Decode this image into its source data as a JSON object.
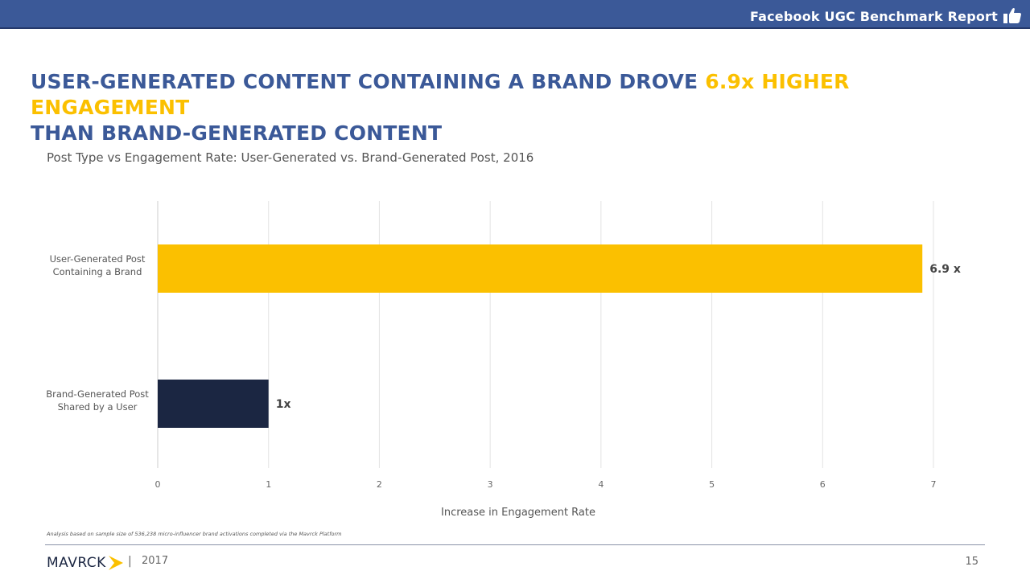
{
  "header": {
    "report_title": "Facebook UGC Benchmark Report",
    "icon": "thumbs-up-icon",
    "bar_color": "#3b5998"
  },
  "headline": {
    "part1": "USER-GENERATED CONTENT CONTAINING A BRAND DROVE ",
    "highlight": "6.9x HIGHER ENGAGEMENT",
    "part2": "THAN BRAND-GENERATED CONTENT",
    "color": "#3b5998",
    "highlight_color": "#fbc000"
  },
  "chart_data": {
    "type": "bar",
    "orientation": "horizontal",
    "title": "Post Type vs Engagement Rate: User-Generated vs. Brand-Generated Post, 2016",
    "xlabel": "Increase in Engagement Rate",
    "ylabel": "",
    "xlim": [
      0,
      7
    ],
    "xticks": [
      "0",
      "1",
      "2",
      "3",
      "4",
      "5",
      "6",
      "7"
    ],
    "grid": true,
    "categories": [
      [
        "User-Generated Post",
        "Containing a Brand"
      ],
      [
        "Brand-Generated Post",
        "Shared by a User"
      ]
    ],
    "values": [
      6.9,
      1
    ],
    "data_labels": [
      "6.9 x",
      "1x"
    ],
    "colors": [
      "#fbc000",
      "#1b2642"
    ]
  },
  "footnote": "Analysis based on sample size of 536,238 micro-influencer brand activations completed via the Mavrck Platform",
  "footer": {
    "logo_text": "MAVRCK",
    "separator": "|",
    "year": "2017",
    "page_number": "15"
  }
}
